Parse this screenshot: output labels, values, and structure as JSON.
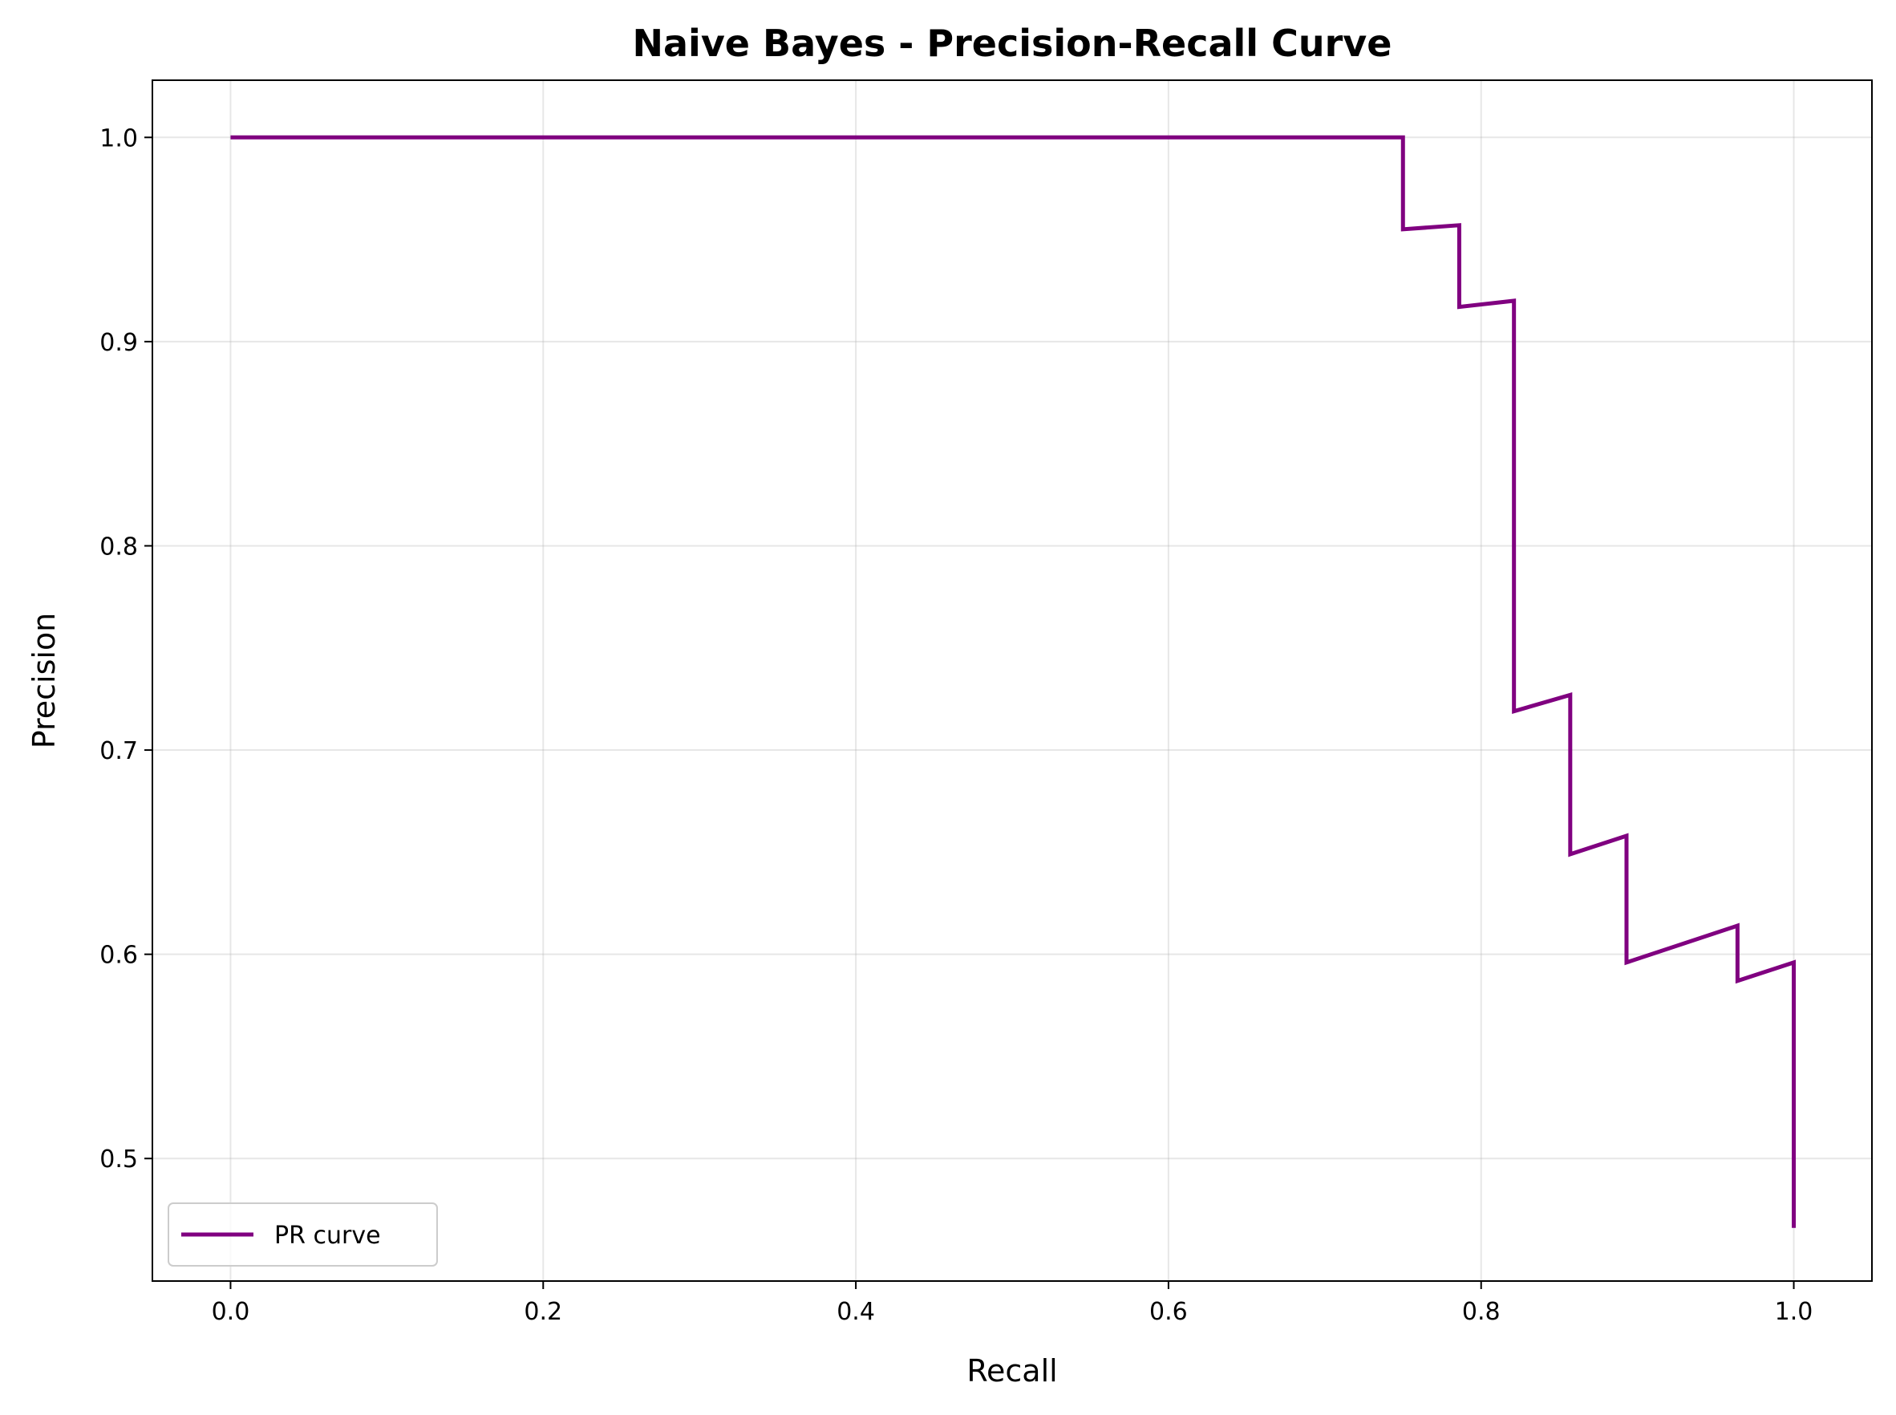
{
  "chart_data": {
    "type": "line",
    "title": "Naive Bayes - Precision-Recall Curve",
    "xlabel": "Recall",
    "ylabel": "Precision",
    "xlim": [
      -0.05,
      1.05
    ],
    "ylim": [
      0.44,
      1.028
    ],
    "xticks": [
      0.0,
      0.2,
      0.4,
      0.6,
      0.8,
      1.0
    ],
    "xtick_labels": [
      "0.0",
      "0.2",
      "0.4",
      "0.6",
      "0.8",
      "1.0"
    ],
    "yticks": [
      0.5,
      0.6,
      0.7,
      0.8,
      0.9,
      1.0
    ],
    "ytick_labels": [
      "0.5",
      "0.6",
      "0.7",
      "0.8",
      "0.9",
      "1.0"
    ],
    "grid": true,
    "legend_position": "lower-left",
    "series": [
      {
        "name": "PR curve",
        "color": "#800080",
        "x": [
          0.0,
          0.75,
          0.75,
          0.786,
          0.786,
          0.821,
          0.821,
          0.857,
          0.857,
          0.893,
          0.893,
          0.964,
          0.964,
          1.0,
          1.0
        ],
        "y": [
          1.0,
          1.0,
          0.955,
          0.957,
          0.917,
          0.92,
          0.719,
          0.727,
          0.649,
          0.658,
          0.596,
          0.614,
          0.587,
          0.596,
          0.466
        ]
      }
    ]
  }
}
